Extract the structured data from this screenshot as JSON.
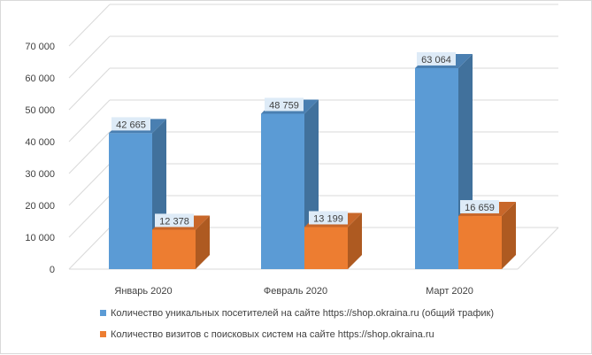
{
  "chart_data": {
    "type": "bar",
    "style": "3d-clustered-column",
    "categories": [
      "Январь 2020",
      "Февраль 2020",
      "Март 2020"
    ],
    "series": [
      {
        "name": "Количество уникальных посетителей на сайте https://shop.okraina.ru (общий трафик)",
        "values": [
          42665,
          48759,
          63064
        ],
        "labels": [
          "42 665",
          "48 759",
          "63 064"
        ],
        "color": "#5b9bd5",
        "side_color": "#41719c",
        "top_color": "#4a7fb1"
      },
      {
        "name": "Количество визитов с поисковых систем на сайте https://shop.okraina.ru",
        "values": [
          12378,
          13199,
          16659
        ],
        "labels": [
          "12 378",
          "13 199",
          "16 659"
        ],
        "color": "#ed7d31",
        "side_color": "#ae5a21",
        "top_color": "#c8672a"
      }
    ],
    "yticks": [
      "0",
      "10 000",
      "20 000",
      "30 000",
      "40 000",
      "50 000",
      "60 000",
      "70 000"
    ],
    "ylim": [
      0,
      70000
    ],
    "legend_position": "bottom",
    "grid": true
  }
}
